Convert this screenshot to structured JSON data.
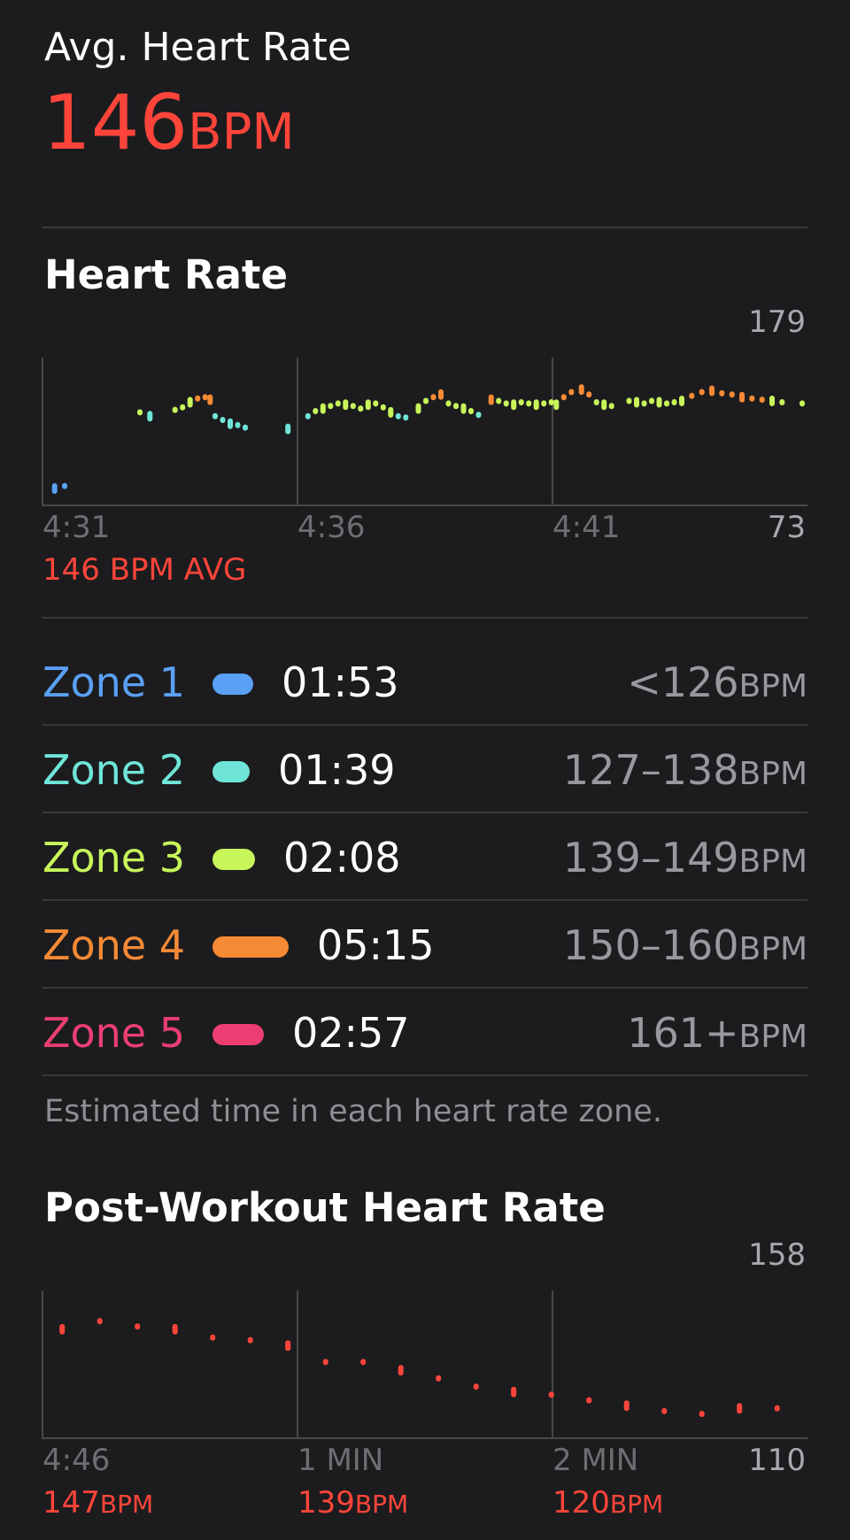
{
  "header": {
    "avg_label": "Avg. Heart Rate",
    "avg_value": "146",
    "avg_unit": "BPM"
  },
  "colors": {
    "zone1": "#5aa0f5",
    "zone2": "#6fe5d8",
    "zone3": "#c8f55a",
    "zone4": "#f58a35",
    "zone5": "#ec3e72",
    "accent_red": "#ff453a"
  },
  "heart_rate": {
    "title": "Heart Rate",
    "y_max_label": "179",
    "y_min_label": "73",
    "x_ticks": [
      "4:31",
      "4:36",
      "4:41"
    ],
    "avg_caption": "146 BPM AVG"
  },
  "zones": [
    {
      "name": "Zone 1",
      "time": "01:53",
      "range": "<126",
      "unit": "BPM"
    },
    {
      "name": "Zone 2",
      "time": "01:39",
      "range": "127–138",
      "unit": "BPM"
    },
    {
      "name": "Zone 3",
      "time": "02:08",
      "range": "139–149",
      "unit": "BPM"
    },
    {
      "name": "Zone 4",
      "time": "05:15",
      "range": "150–160",
      "unit": "BPM"
    },
    {
      "name": "Zone 5",
      "time": "02:57",
      "range": "161+",
      "unit": "BPM"
    }
  ],
  "zones_note": "Estimated time in each heart rate zone.",
  "post_workout": {
    "title": "Post-Workout Heart Rate",
    "y_max_label": "158",
    "y_min_label": "110",
    "x_ticks": [
      "4:46",
      "1 MIN",
      "2 MIN"
    ],
    "readings": [
      {
        "value": "147",
        "unit": "BPM"
      },
      {
        "value": "139",
        "unit": "BPM"
      },
      {
        "value": "120",
        "unit": "BPM"
      }
    ]
  },
  "chart_data": [
    {
      "type": "scatter",
      "title": "Heart Rate",
      "xlabel": "",
      "ylabel": "",
      "ylim": [
        73,
        179
      ],
      "x_unit": "minutes after 4:31",
      "x_ticks": [
        "4:31",
        "4:36",
        "4:41"
      ],
      "points": [
        [
          0.1,
          80
        ],
        [
          0.3,
          82
        ],
        [
          1.8,
          140
        ],
        [
          2.0,
          137
        ],
        [
          2.5,
          142
        ],
        [
          2.65,
          144
        ],
        [
          2.8,
          148
        ],
        [
          2.95,
          151
        ],
        [
          3.1,
          152
        ],
        [
          3.2,
          150
        ],
        [
          3.3,
          137
        ],
        [
          3.45,
          134
        ],
        [
          3.6,
          131
        ],
        [
          3.75,
          130
        ],
        [
          3.9,
          128
        ],
        [
          4.75,
          127
        ],
        [
          5.15,
          137
        ],
        [
          5.3,
          141
        ],
        [
          5.45,
          143
        ],
        [
          5.6,
          145
        ],
        [
          5.75,
          147
        ],
        [
          5.9,
          146
        ],
        [
          6.05,
          145
        ],
        [
          6.2,
          143
        ],
        [
          6.35,
          146
        ],
        [
          6.5,
          147
        ],
        [
          6.65,
          144
        ],
        [
          6.8,
          140
        ],
        [
          6.95,
          137
        ],
        [
          7.1,
          136
        ],
        [
          7.35,
          143
        ],
        [
          7.5,
          149
        ],
        [
          7.65,
          152
        ],
        [
          7.8,
          154
        ],
        [
          7.95,
          147
        ],
        [
          8.1,
          145
        ],
        [
          8.25,
          143
        ],
        [
          8.4,
          141
        ],
        [
          8.55,
          138
        ],
        [
          8.8,
          150
        ],
        [
          8.95,
          149
        ],
        [
          9.1,
          147
        ],
        [
          9.25,
          146
        ],
        [
          9.4,
          148
        ],
        [
          9.55,
          147
        ],
        [
          9.7,
          146
        ],
        [
          9.85,
          147
        ],
        [
          10.0,
          148
        ],
        [
          10.1,
          146
        ],
        [
          10.25,
          152
        ],
        [
          10.4,
          156
        ],
        [
          10.6,
          158
        ],
        [
          10.75,
          154
        ],
        [
          10.9,
          148
        ],
        [
          11.05,
          146
        ],
        [
          11.2,
          145
        ],
        [
          11.55,
          149
        ],
        [
          11.7,
          148
        ],
        [
          11.85,
          147
        ],
        [
          12.0,
          149
        ],
        [
          12.15,
          148
        ],
        [
          12.3,
          147
        ],
        [
          12.45,
          148
        ],
        [
          12.6,
          149
        ],
        [
          12.8,
          153
        ],
        [
          13.0,
          156
        ],
        [
          13.2,
          157
        ],
        [
          13.4,
          155
        ],
        [
          13.6,
          154
        ],
        [
          13.8,
          152
        ],
        [
          14.0,
          151
        ],
        [
          14.2,
          150
        ],
        [
          14.4,
          149
        ],
        [
          14.6,
          148
        ],
        [
          15.0,
          147
        ]
      ]
    },
    {
      "type": "scatter",
      "title": "Post-Workout Heart Rate",
      "xlabel": "",
      "ylabel": "",
      "ylim": [
        110,
        158
      ],
      "x_unit": "minutes after 4:46",
      "x_ticks": [
        "4:46",
        "1 MIN",
        "2 MIN"
      ],
      "points": [
        [
          0.05,
          147
        ],
        [
          0.2,
          150
        ],
        [
          0.35,
          148
        ],
        [
          0.5,
          147
        ],
        [
          0.65,
          144
        ],
        [
          0.8,
          143
        ],
        [
          0.95,
          141
        ],
        [
          1.1,
          135
        ],
        [
          1.25,
          135
        ],
        [
          1.4,
          132
        ],
        [
          1.55,
          129
        ],
        [
          1.7,
          126
        ],
        [
          1.85,
          124
        ],
        [
          2.0,
          123
        ],
        [
          2.15,
          121
        ],
        [
          2.3,
          119
        ],
        [
          2.45,
          117
        ],
        [
          2.6,
          116
        ],
        [
          2.75,
          118
        ],
        [
          2.9,
          118
        ]
      ]
    }
  ]
}
